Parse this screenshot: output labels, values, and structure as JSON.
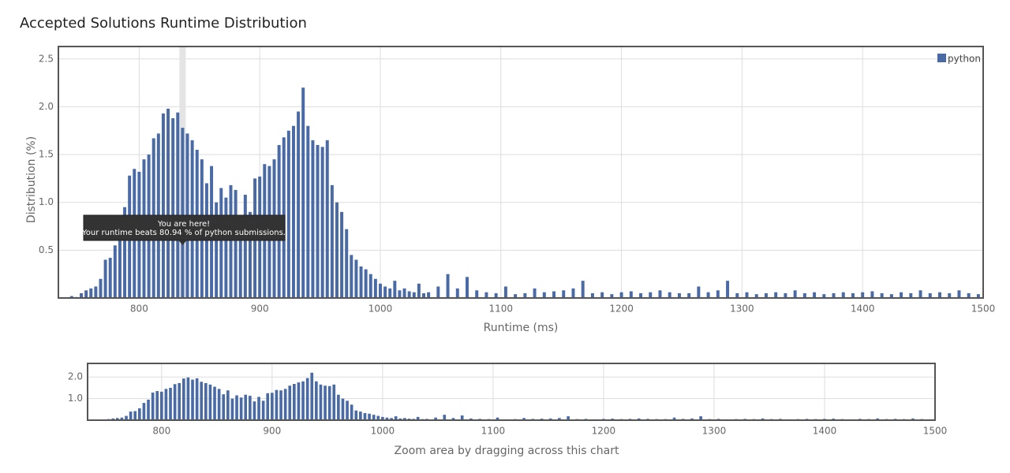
{
  "chart_data": {
    "type": "bar",
    "title": "Accepted Solutions Runtime Distribution",
    "x_label": "Runtime (ms)",
    "y_label": "Distribution (%)",
    "series": [
      {
        "name": "python",
        "color": "#4a6aa5",
        "x": [
          744,
          748,
          752,
          756,
          760,
          764,
          768,
          772,
          776,
          780,
          784,
          788,
          792,
          796,
          800,
          804,
          808,
          812,
          816,
          820,
          824,
          828,
          832,
          836,
          840,
          844,
          848,
          852,
          856,
          860,
          864,
          868,
          872,
          876,
          880,
          884,
          888,
          892,
          896,
          900,
          904,
          908,
          912,
          916,
          920,
          924,
          928,
          932,
          936,
          940,
          944,
          948,
          952,
          956,
          960,
          964,
          968,
          972,
          976,
          980,
          984,
          988,
          992,
          996,
          1000,
          1004,
          1008,
          1012,
          1016,
          1020,
          1024,
          1028,
          1032,
          1036,
          1040,
          1048,
          1056,
          1064,
          1072,
          1080,
          1088,
          1096,
          1104,
          1112,
          1120,
          1128,
          1136,
          1144,
          1152,
          1160,
          1168,
          1176,
          1184,
          1192,
          1200,
          1208,
          1216,
          1224,
          1232,
          1240,
          1248,
          1256,
          1264,
          1272,
          1280,
          1288,
          1296,
          1304,
          1312,
          1320,
          1328,
          1336,
          1344,
          1352,
          1360,
          1368,
          1376,
          1384,
          1392,
          1400,
          1408,
          1416,
          1424,
          1432,
          1440,
          1448,
          1456,
          1464,
          1472,
          1480,
          1488,
          1496
        ],
        "values": [
          0.02,
          0.01,
          0.05,
          0.08,
          0.1,
          0.12,
          0.2,
          0.4,
          0.42,
          0.55,
          0.8,
          0.95,
          1.28,
          1.35,
          1.32,
          1.45,
          1.5,
          1.67,
          1.72,
          1.93,
          1.98,
          1.88,
          1.94,
          1.78,
          1.72,
          1.65,
          1.55,
          1.45,
          1.2,
          1.38,
          1.0,
          1.15,
          1.05,
          1.18,
          1.13,
          0.87,
          1.08,
          0.9,
          1.25,
          1.27,
          1.4,
          1.38,
          1.45,
          1.6,
          1.68,
          1.75,
          1.8,
          1.95,
          2.2,
          1.8,
          1.65,
          1.6,
          1.58,
          1.65,
          1.18,
          1.0,
          0.9,
          0.72,
          0.45,
          0.4,
          0.33,
          0.3,
          0.25,
          0.2,
          0.15,
          0.12,
          0.1,
          0.18,
          0.08,
          0.1,
          0.07,
          0.06,
          0.15,
          0.05,
          0.06,
          0.12,
          0.25,
          0.1,
          0.22,
          0.08,
          0.06,
          0.05,
          0.12,
          0.04,
          0.05,
          0.1,
          0.06,
          0.07,
          0.08,
          0.1,
          0.18,
          0.05,
          0.06,
          0.04,
          0.06,
          0.07,
          0.05,
          0.06,
          0.08,
          0.06,
          0.05,
          0.05,
          0.12,
          0.06,
          0.08,
          0.18,
          0.05,
          0.06,
          0.04,
          0.05,
          0.06,
          0.05,
          0.08,
          0.05,
          0.06,
          0.04,
          0.05,
          0.06,
          0.05,
          0.06,
          0.07,
          0.05,
          0.04,
          0.06,
          0.05,
          0.08,
          0.05,
          0.06,
          0.05,
          0.08,
          0.05,
          0.04
        ]
      }
    ],
    "xlim": [
      733,
      1500
    ],
    "xticks": [
      800,
      900,
      1000,
      1100,
      1200,
      1300,
      1400,
      1500
    ],
    "ylim": [
      0,
      2.63
    ],
    "yticks": [
      0.5,
      {
        "value": 1,
        "label": "1.0"
      },
      1.5,
      {
        "value": 2,
        "label": "2.0"
      },
      2.5
    ],
    "grid": true,
    "legend": "top-right",
    "highlight_x": 836,
    "tooltip": [
      "You are here!",
      "Your runtime beats 80.94 % of python submissions."
    ],
    "navigator": {
      "ylim": [
        0,
        2.63
      ],
      "yticks": [
        {
          "value": 1,
          "label": "1.0"
        },
        {
          "value": 2,
          "label": "2.0"
        }
      ],
      "caption": "Zoom area by dragging across this chart"
    }
  }
}
